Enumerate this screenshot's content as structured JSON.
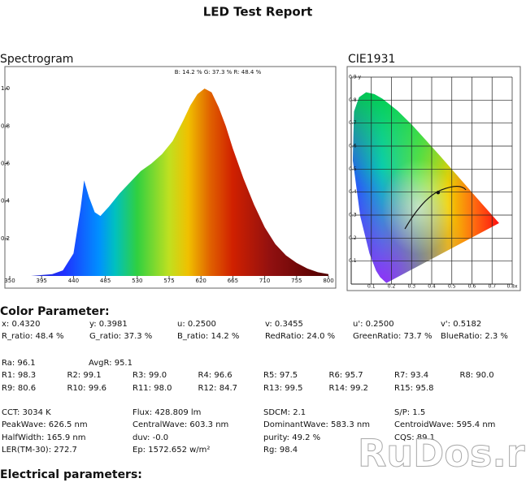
{
  "title": "LED Test Report",
  "spectrogram": {
    "title": "Spectrogram",
    "ratio_note": "B: 14.2 %  G: 37.3 %  R: 48.4 %",
    "x": [
      350,
      365,
      380,
      395,
      410,
      425,
      440,
      450,
      455,
      462,
      470,
      478,
      490,
      505,
      520,
      535,
      550,
      565,
      580,
      595,
      605,
      615,
      625,
      635,
      645,
      655,
      665,
      680,
      695,
      710,
      725,
      740,
      755,
      770,
      785,
      800
    ],
    "values": [
      0,
      0,
      0,
      0.005,
      0.01,
      0.03,
      0.12,
      0.36,
      0.51,
      0.42,
      0.34,
      0.32,
      0.37,
      0.44,
      0.5,
      0.56,
      0.6,
      0.65,
      0.72,
      0.83,
      0.91,
      0.97,
      1.0,
      0.98,
      0.9,
      0.8,
      0.68,
      0.52,
      0.38,
      0.26,
      0.17,
      0.11,
      0.07,
      0.04,
      0.02,
      0.01
    ],
    "xlim": [
      350,
      800
    ],
    "ylim": [
      0,
      1.1
    ],
    "xticks": [
      350,
      395,
      440,
      485,
      530,
      575,
      620,
      665,
      710,
      755,
      800
    ],
    "yticks": [
      0.2,
      0.4,
      0.6,
      0.8,
      {
        "value": 1,
        "label": "1.0"
      }
    ]
  },
  "cie": {
    "title": "CIE1931",
    "xlim": [
      0,
      0.8
    ],
    "ylim": [
      0,
      0.9
    ],
    "xticks": [
      0.1,
      0.2,
      0.3,
      0.4,
      0.5,
      0.6,
      0.7,
      {
        "value": 0.8,
        "label": "0.8x"
      }
    ],
    "yticks": [
      0.1,
      0.2,
      0.3,
      0.4,
      0.5,
      0.6,
      0.7,
      0.8,
      {
        "value": 0.9,
        "label": "0.9 y"
      }
    ],
    "point_x": 0.432,
    "point_y": 0.3981
  },
  "color_parameters": {
    "heading": "Color Parameter:",
    "rows": [
      [
        "x: 0.4320",
        "y: 0.3981",
        "u: 0.2500",
        "v: 0.3455",
        "u': 0.2500",
        "v': 0.5182"
      ],
      [
        "R_ratio: 48.4 %",
        "G_ratio: 37.3 %",
        "B_ratio: 14.2 %",
        "RedRatio: 24.0 %",
        "GreenRatio: 73.7 %",
        "BlueRatio: 2.3 %"
      ],
      [
        "Ra: 96.1",
        "AvgR: 95.1"
      ],
      [
        "R1: 98.3",
        "R2: 99.1",
        "R3: 99.0",
        "R4: 96.6",
        "R5: 97.5",
        "R6: 95.7",
        "R7: 93.4",
        "R8: 90.0"
      ],
      [
        "R9: 80.6",
        "R10: 99.6",
        "R11: 98.0",
        "R12: 84.7",
        "R13: 99.5",
        "R14: 99.2",
        "R15: 95.8"
      ],
      [
        "CCT: 3034 K",
        "Flux: 428.809 lm",
        "SDCM: 2.1",
        "S/P: 1.5"
      ],
      [
        "PeakWave: 626.5 nm",
        "CentralWave: 603.3 nm",
        "DominantWave: 583.3 nm",
        "CentroidWave: 595.4 nm"
      ],
      [
        "HalfWidth: 165.9 nm",
        "duv: -0.0",
        "purity: 49.2 %",
        "CQS: 89.1"
      ],
      [
        "LER(TM-30): 272.7",
        "Ep: 1572.652 w/m²",
        "Rg: 98.4"
      ]
    ]
  },
  "electrical_parameters": {
    "heading": "Electrical parameters:"
  },
  "watermark": "RuDos.ru"
}
